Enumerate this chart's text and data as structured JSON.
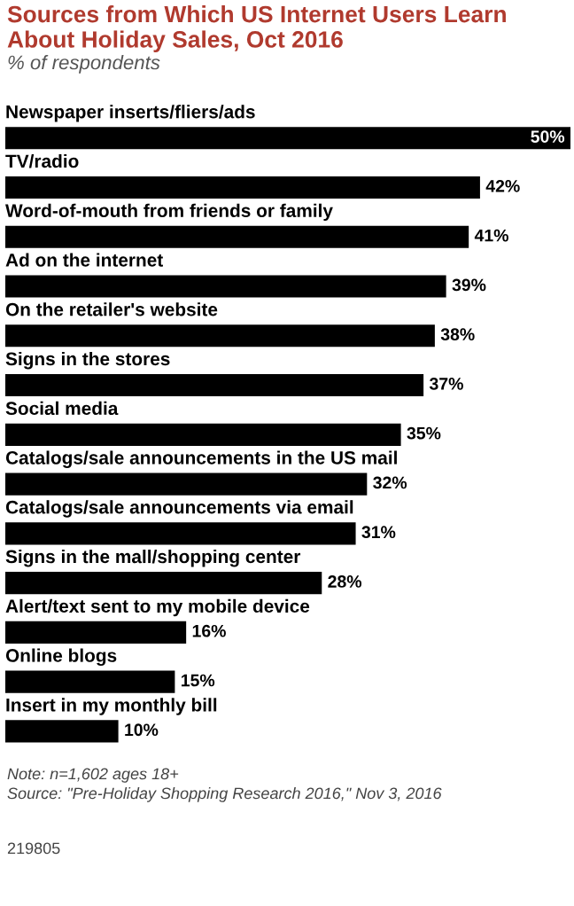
{
  "chart_data": {
    "type": "bar",
    "orientation": "horizontal",
    "title": "Sources from Which US Internet Users Learn About Holiday Sales, Oct 2016",
    "subtitle": "% of respondents",
    "categories": [
      "Newspaper inserts/fliers/ads",
      "TV/radio",
      "Word-of-mouth from friends or family",
      "Ad on the internet",
      "On the retailer's website",
      "Signs in the stores",
      "Social media",
      "Catalogs/sale announcements in the US mail",
      "Catalogs/sale announcements via email",
      "Signs in the mall/shopping center",
      "Alert/text sent to my mobile device",
      "Online blogs",
      "Insert in my monthly bill"
    ],
    "values": [
      50,
      42,
      41,
      39,
      38,
      37,
      35,
      32,
      31,
      28,
      16,
      15,
      10
    ],
    "value_labels": [
      "50%",
      "42%",
      "41%",
      "39%",
      "38%",
      "37%",
      "35%",
      "32%",
      "31%",
      "28%",
      "16%",
      "15%",
      "10%"
    ],
    "color": "#000000",
    "xlim": [
      0,
      50
    ],
    "annotations": [
      "Note: n=1,602 ages 18+",
      "Source: \"Pre-Holiday Shopping Research 2016,\" Nov 3, 2016",
      "219805"
    ]
  }
}
